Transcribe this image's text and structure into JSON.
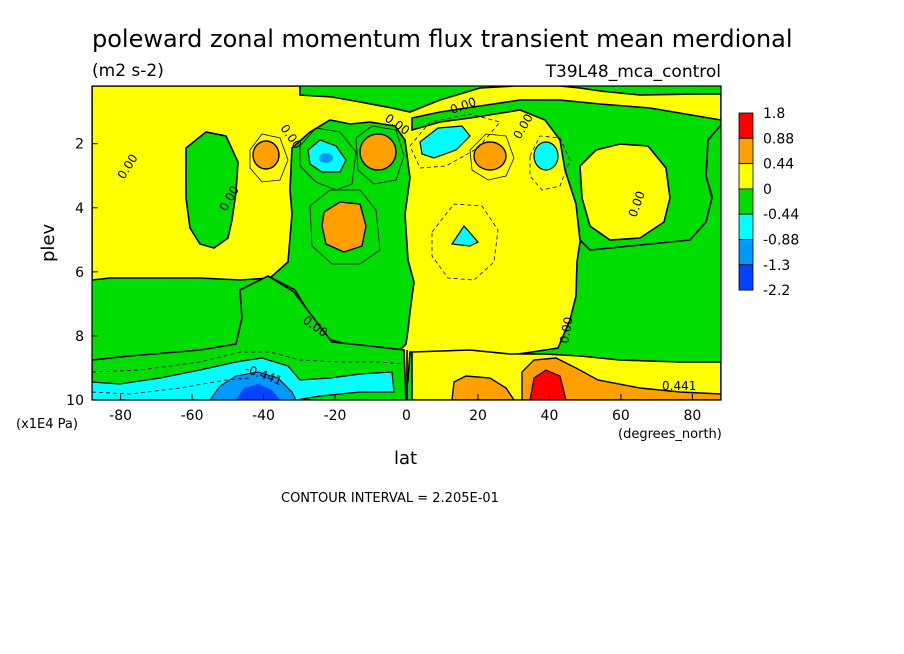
{
  "chart_data": {
    "type": "heatmap",
    "title": "poleward zonal momentum flux transient mean merdional",
    "units": "(m2 s-2)",
    "run": "T39L48_mca_control",
    "xlabel": "lat",
    "xunits": "(degrees_north)",
    "ylabel": "plev",
    "yunits": "(x1E4 Pa)",
    "xlim": [
      -88,
      88
    ],
    "ylim": [
      10,
      0.2
    ],
    "xticks": [
      -80,
      -60,
      -40,
      -20,
      0,
      20,
      40,
      60,
      80
    ],
    "yticks": [
      2,
      4,
      6,
      8,
      10
    ],
    "contour_interval": "CONTOUR INTERVAL = 2.205E-01",
    "contour_labels": [
      "0.00",
      "0.00",
      "0.00",
      "0.00",
      "0.00",
      "0.00",
      "0.00",
      "0.00",
      "0.00",
      "0.00",
      "-0.441",
      "0.441"
    ],
    "colorbar": {
      "labels": [
        "1.8",
        "0.88",
        "0.44",
        "0",
        "-0.44",
        "-0.88",
        "-1.3",
        "-2.2"
      ],
      "colors": [
        "#ff0000",
        "#ff9f00",
        "#ffff00",
        "#00dd00",
        "#00ffff",
        "#0099ff",
        "#0044ff"
      ]
    },
    "colors": {
      "level_above_0.88": "#ff0000",
      "level_0.44_0.88": "#ff9f00",
      "level_0_0.44": "#ffff00",
      "level_-0.44_0": "#00dd00",
      "level_-0.88_-0.44": "#00ffff",
      "level_-1.3_-0.88": "#0099ff",
      "level_below_-1.3": "#0044ff"
    }
  }
}
